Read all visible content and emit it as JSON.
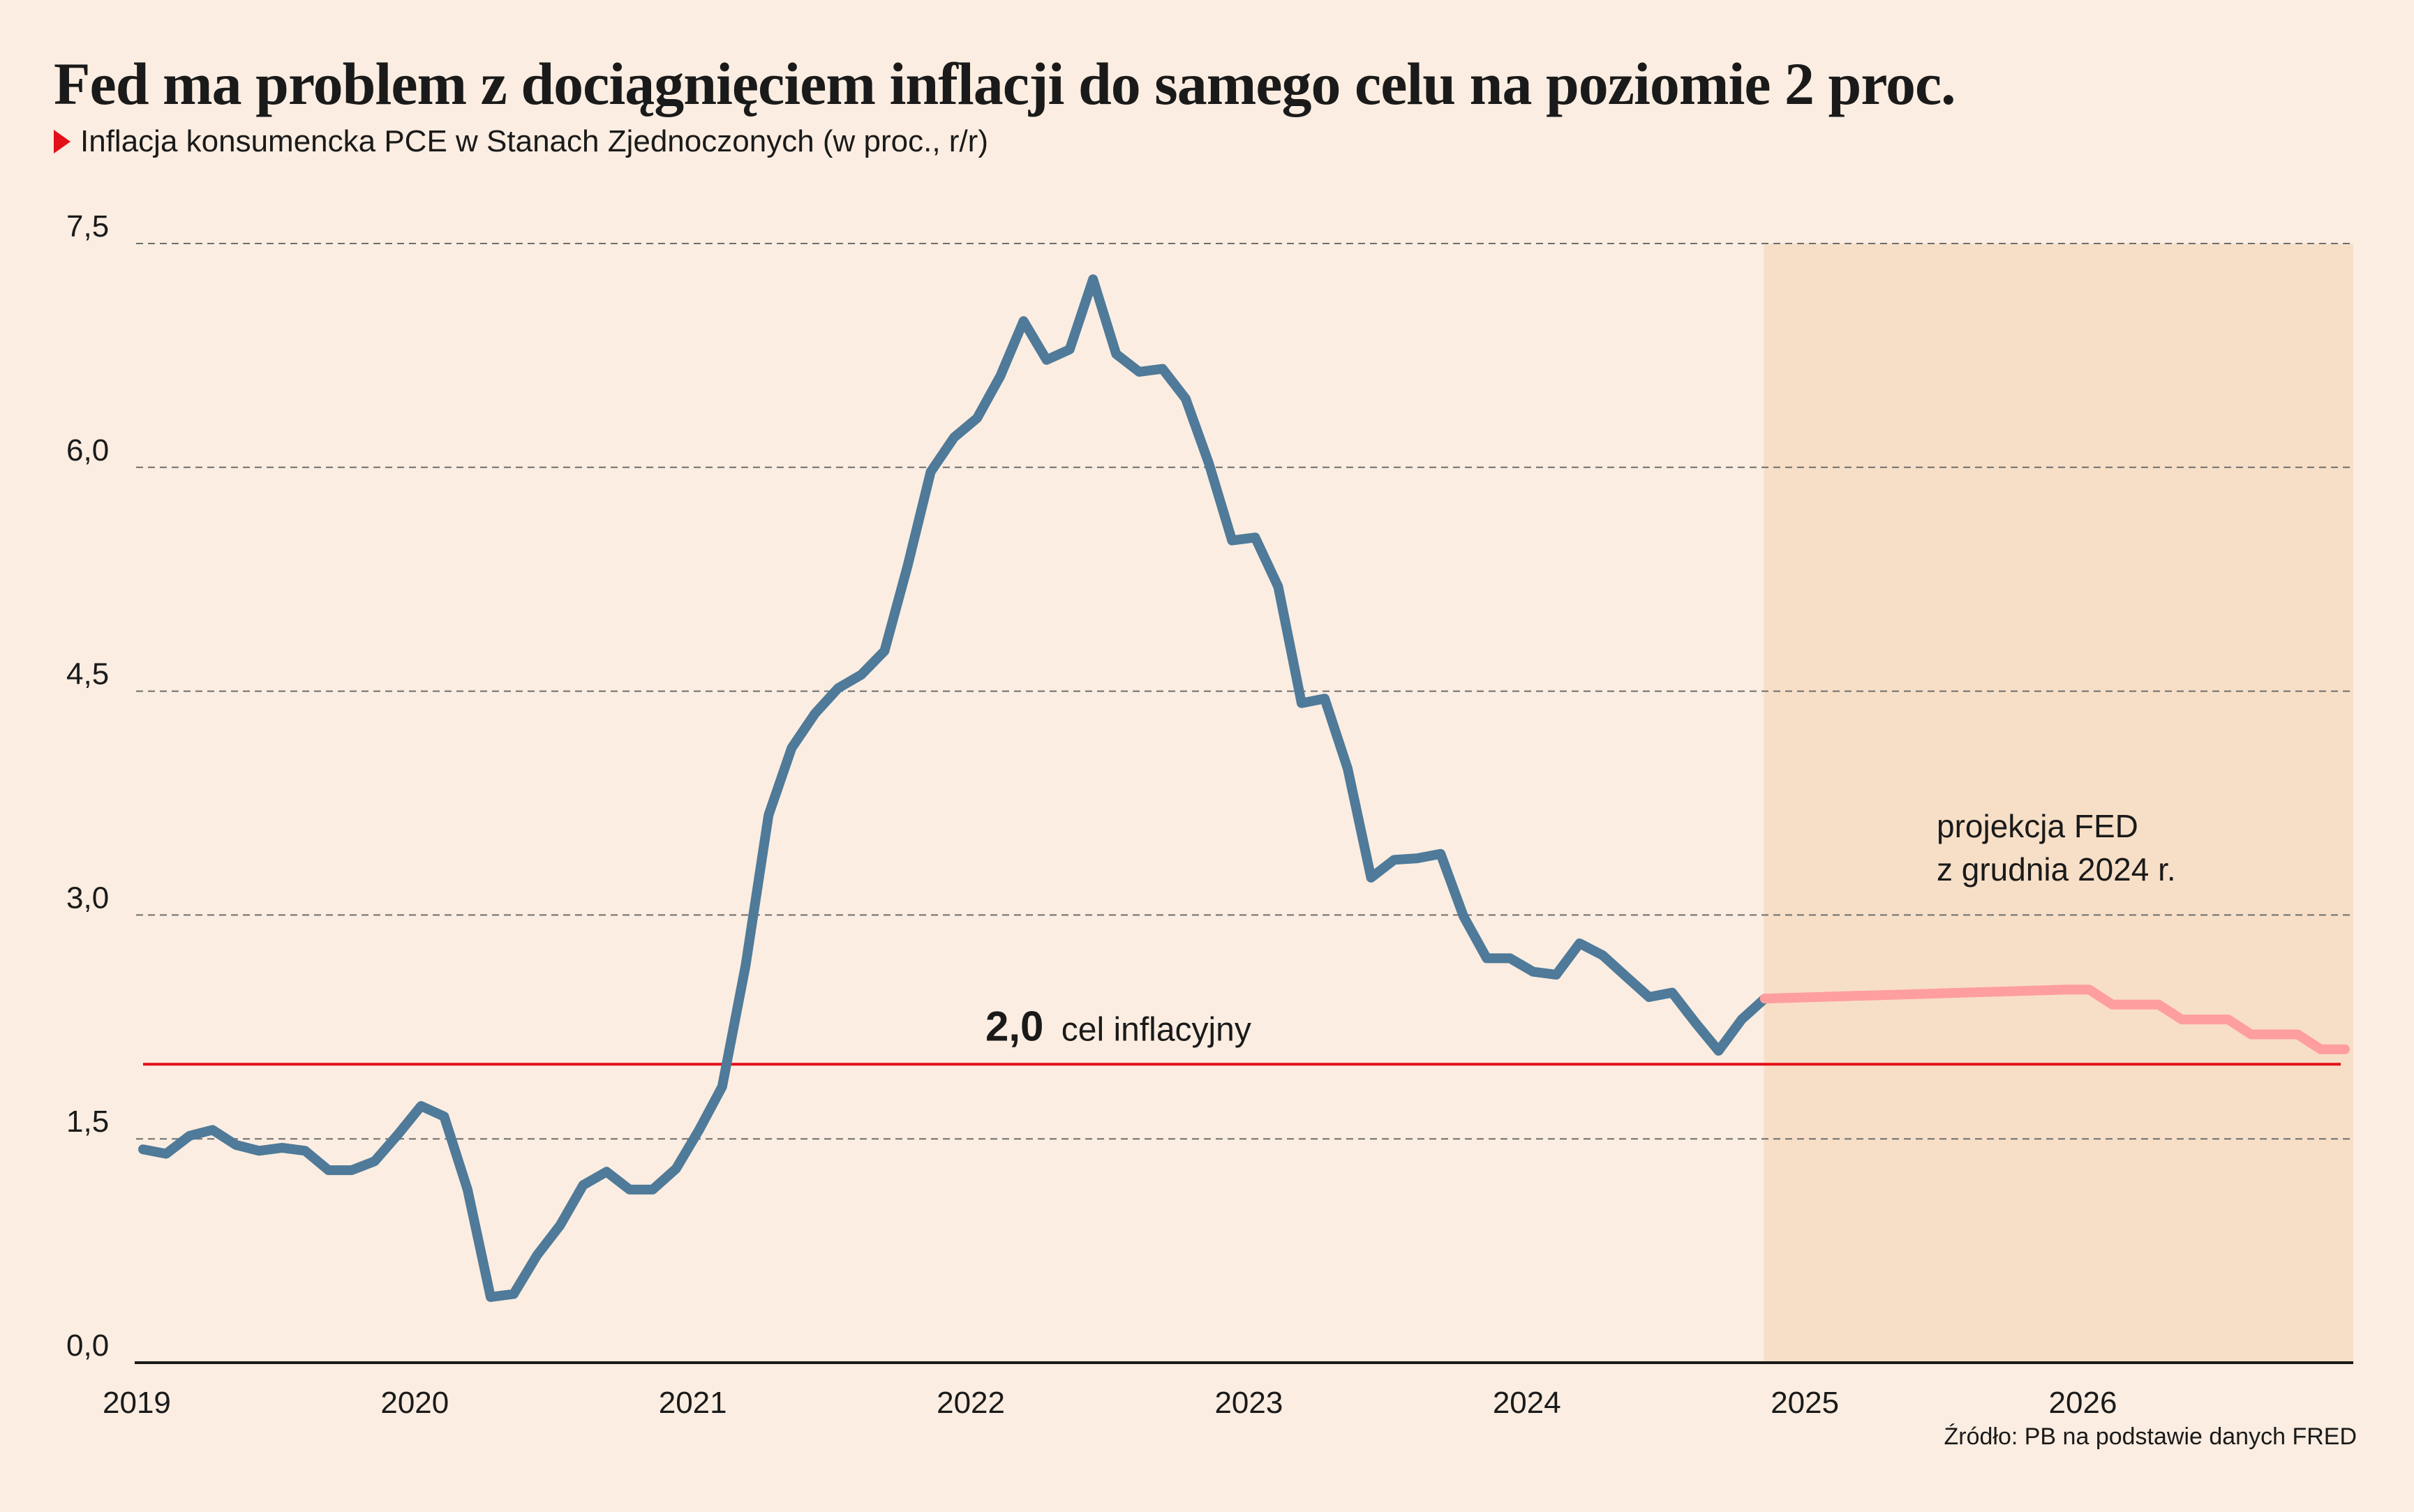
{
  "title": "Fed ma problem z dociągnięciem inflacji do samego celu na poziomie 2 proc.",
  "subtitle": "Inflacja konsumencka PCE w Stanach Zjednoczonych (w proc., r/r)",
  "source": "Źródło: PB na podstawie danych FRED",
  "colors": {
    "background": "#fbede1",
    "actual": "#4f7a99",
    "projection": "#ff9e9e",
    "target": "#e3101a",
    "projection_band": "#f7dfc7"
  },
  "chart_data": {
    "type": "line",
    "ylim": [
      0,
      7.5
    ],
    "yticks": [
      0,
      1.5,
      3.0,
      4.5,
      6.0,
      7.5
    ],
    "ytick_labels": [
      "0,0",
      "1,5",
      "3,0",
      "4,5",
      "6,0",
      "7,5"
    ],
    "xlim": [
      2019.0,
      2026.95
    ],
    "xticks": [
      2019,
      2020,
      2021,
      2022,
      2023,
      2024,
      2025,
      2026
    ],
    "xtick_labels": [
      "2019",
      "2020",
      "2021",
      "2022",
      "2023",
      "2024",
      "2025",
      "2026"
    ],
    "grid": true,
    "target_line": {
      "value": 2.0,
      "value_label": "2,0",
      "label": "cel inflacyjny"
    },
    "projection_band": {
      "x_start": 2024.83,
      "x_end": 2026.95,
      "label_line1": "projekcja FED",
      "label_line2": "z grudnia 2024 r."
    },
    "series": [
      {
        "x": [
          2019.0,
          2019.083,
          2019.167,
          2019.25,
          2019.333,
          2019.417,
          2019.5,
          2019.583,
          2019.667,
          2019.75,
          2019.833,
          2019.917,
          2020.0,
          2020.083,
          2020.167,
          2020.25,
          2020.333,
          2020.417,
          2020.5,
          2020.583,
          2020.667,
          2020.75,
          2020.833,
          2020.917,
          2021.0,
          2021.083,
          2021.167,
          2021.25,
          2021.333,
          2021.417,
          2021.5,
          2021.583,
          2021.667,
          2021.75,
          2021.833,
          2021.917,
          2022.0,
          2022.083,
          2022.167,
          2022.25,
          2022.333,
          2022.417,
          2022.5,
          2022.583,
          2022.667,
          2022.75,
          2022.833,
          2022.917,
          2023.0,
          2023.083,
          2023.167,
          2023.25,
          2023.333,
          2023.417,
          2023.5,
          2023.583,
          2023.667,
          2023.75,
          2023.833,
          2023.917,
          2024.0,
          2024.083,
          2024.167,
          2024.25,
          2024.333,
          2024.417,
          2024.5,
          2024.583,
          2024.667,
          2024.75,
          2024.833
        ],
        "values": [
          1.43,
          1.4,
          1.52,
          1.56,
          1.46,
          1.42,
          1.44,
          1.42,
          1.29,
          1.29,
          1.35,
          1.53,
          1.72,
          1.65,
          1.16,
          0.44,
          0.46,
          0.72,
          0.92,
          1.19,
          1.28,
          1.16,
          1.16,
          1.3,
          1.56,
          1.85,
          2.66,
          3.67,
          4.12,
          4.35,
          4.52,
          4.61,
          4.77,
          5.34,
          5.97,
          6.2,
          6.33,
          6.61,
          6.98,
          6.72,
          6.79,
          7.26,
          6.76,
          6.64,
          6.66,
          6.46,
          6.03,
          5.51,
          5.53,
          5.2,
          4.42,
          4.45,
          3.98,
          3.25,
          3.37,
          3.38,
          3.41,
          2.99,
          2.71,
          2.71,
          2.62,
          2.6,
          2.81,
          2.73,
          2.59,
          2.45,
          2.48,
          2.28,
          2.09,
          2.3,
          2.44
        ]
      },
      {
        "x": [
          2024.833,
          2025.917,
          2026.0,
          2026.083,
          2026.25,
          2026.333,
          2026.5,
          2026.583,
          2026.75,
          2026.833,
          2026.92
        ],
        "values": [
          2.44,
          2.5,
          2.5,
          2.4,
          2.4,
          2.3,
          2.3,
          2.2,
          2.2,
          2.1,
          2.1
        ]
      }
    ]
  }
}
